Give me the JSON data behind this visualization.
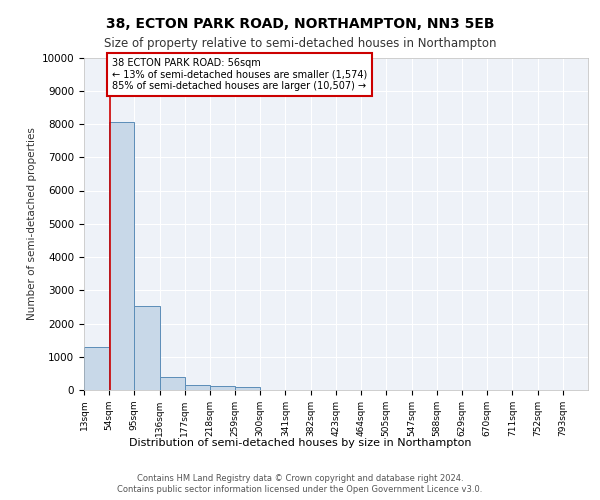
{
  "title1": "38, ECTON PARK ROAD, NORTHAMPTON, NN3 5EB",
  "title2": "Size of property relative to semi-detached houses in Northampton",
  "xlabel": "Distribution of semi-detached houses by size in Northampton",
  "ylabel": "Number of semi-detached properties",
  "footer1": "Contains HM Land Registry data © Crown copyright and database right 2024.",
  "footer2": "Contains public sector information licensed under the Open Government Licence v3.0.",
  "annotation_title": "38 ECTON PARK ROAD: 56sqm",
  "annotation_line1": "← 13% of semi-detached houses are smaller (1,574)",
  "annotation_line2": "85% of semi-detached houses are larger (10,507) →",
  "property_size_sqm": 56,
  "bin_edges": [
    13,
    54,
    95,
    136,
    177,
    218,
    259,
    300,
    341,
    382,
    423,
    464,
    505,
    547,
    588,
    629,
    670,
    711,
    752,
    793,
    834
  ],
  "bin_counts": [
    1300,
    8050,
    2520,
    380,
    155,
    120,
    90,
    0,
    0,
    0,
    0,
    0,
    0,
    0,
    0,
    0,
    0,
    0,
    0,
    0
  ],
  "bar_color": "#c8d8e8",
  "bar_edge_color": "#5b8db8",
  "vline_color": "#cc0000",
  "annotation_box_edge": "#cc0000",
  "background_color": "#eef2f8",
  "ylim": [
    0,
    10000
  ],
  "yticks": [
    0,
    1000,
    2000,
    3000,
    4000,
    5000,
    6000,
    7000,
    8000,
    9000,
    10000
  ],
  "title1_fontsize": 10,
  "title2_fontsize": 8.5,
  "ylabel_fontsize": 7.5,
  "xtick_fontsize": 6.5,
  "ytick_fontsize": 7.5,
  "xlabel_fontsize": 8,
  "footer_fontsize": 6,
  "annot_fontsize": 7
}
